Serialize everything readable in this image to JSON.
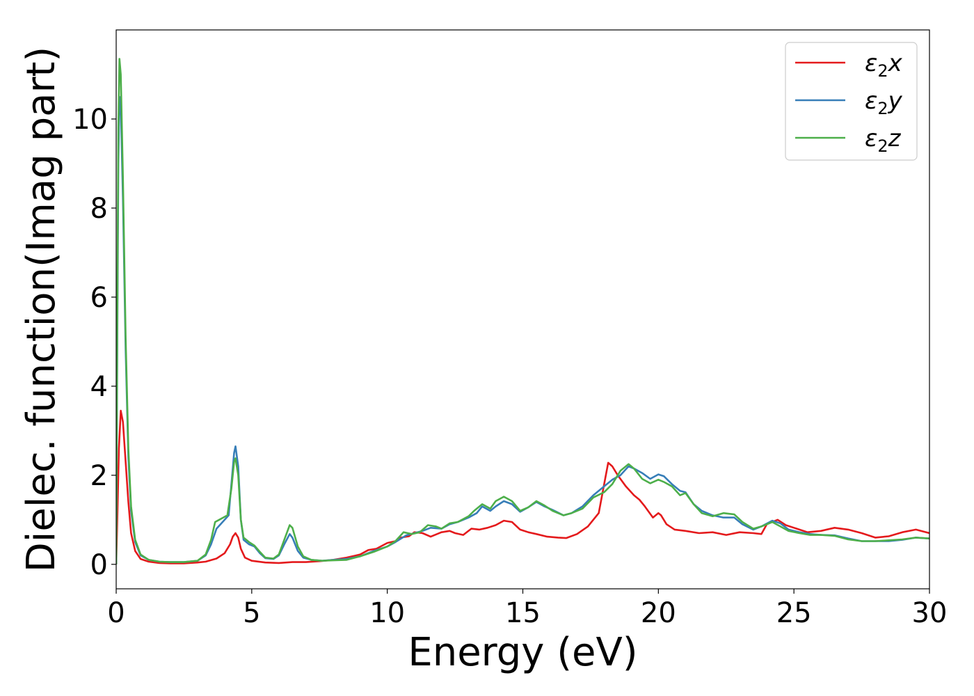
{
  "chart_data": {
    "type": "line",
    "title": "",
    "xlabel": "Energy (eV)",
    "ylabel": "Dielec. function(Imag part)",
    "xlim": [
      0,
      30
    ],
    "ylim": [
      -0.55,
      12.0
    ],
    "xticks": [
      0,
      5,
      10,
      15,
      20,
      25,
      30
    ],
    "yticks": [
      0,
      2,
      4,
      6,
      8,
      10
    ],
    "grid": false,
    "legend_position": "top-right",
    "series": [
      {
        "name": "ε₂x",
        "legend_base": "ε",
        "legend_sub": "2",
        "legend_suffix": "x",
        "color": "#e41a1c",
        "points": [
          [
            0,
            0
          ],
          [
            0.05,
            1.2
          ],
          [
            0.1,
            2.6
          ],
          [
            0.17,
            3.45
          ],
          [
            0.25,
            3.2
          ],
          [
            0.35,
            2.3
          ],
          [
            0.45,
            1.4
          ],
          [
            0.55,
            0.7
          ],
          [
            0.7,
            0.3
          ],
          [
            0.9,
            0.12
          ],
          [
            1.2,
            0.06
          ],
          [
            1.6,
            0.03
          ],
          [
            2.0,
            0.02
          ],
          [
            2.5,
            0.02
          ],
          [
            3.0,
            0.04
          ],
          [
            3.3,
            0.06
          ],
          [
            3.7,
            0.13
          ],
          [
            4.0,
            0.25
          ],
          [
            4.2,
            0.45
          ],
          [
            4.3,
            0.62
          ],
          [
            4.4,
            0.7
          ],
          [
            4.5,
            0.6
          ],
          [
            4.6,
            0.35
          ],
          [
            4.75,
            0.15
          ],
          [
            5.0,
            0.08
          ],
          [
            5.5,
            0.04
          ],
          [
            6.0,
            0.03
          ],
          [
            6.5,
            0.05
          ],
          [
            7.0,
            0.05
          ],
          [
            7.5,
            0.07
          ],
          [
            8.0,
            0.1
          ],
          [
            8.5,
            0.15
          ],
          [
            9.0,
            0.22
          ],
          [
            9.3,
            0.32
          ],
          [
            9.6,
            0.35
          ],
          [
            10.0,
            0.48
          ],
          [
            10.3,
            0.52
          ],
          [
            10.5,
            0.6
          ],
          [
            10.8,
            0.63
          ],
          [
            11.0,
            0.72
          ],
          [
            11.3,
            0.7
          ],
          [
            11.6,
            0.62
          ],
          [
            12.0,
            0.72
          ],
          [
            12.3,
            0.75
          ],
          [
            12.5,
            0.7
          ],
          [
            12.8,
            0.66
          ],
          [
            13.1,
            0.8
          ],
          [
            13.4,
            0.78
          ],
          [
            13.7,
            0.82
          ],
          [
            14.0,
            0.88
          ],
          [
            14.3,
            0.98
          ],
          [
            14.6,
            0.95
          ],
          [
            14.9,
            0.78
          ],
          [
            15.2,
            0.72
          ],
          [
            15.5,
            0.68
          ],
          [
            15.9,
            0.62
          ],
          [
            16.3,
            0.6
          ],
          [
            16.6,
            0.59
          ],
          [
            17.0,
            0.68
          ],
          [
            17.4,
            0.85
          ],
          [
            17.8,
            1.15
          ],
          [
            18.0,
            1.8
          ],
          [
            18.15,
            2.28
          ],
          [
            18.3,
            2.2
          ],
          [
            18.5,
            2.0
          ],
          [
            18.8,
            1.75
          ],
          [
            19.1,
            1.55
          ],
          [
            19.3,
            1.45
          ],
          [
            19.5,
            1.3
          ],
          [
            19.8,
            1.05
          ],
          [
            20.0,
            1.15
          ],
          [
            20.1,
            1.1
          ],
          [
            20.3,
            0.9
          ],
          [
            20.6,
            0.78
          ],
          [
            21.0,
            0.75
          ],
          [
            21.5,
            0.7
          ],
          [
            22.0,
            0.72
          ],
          [
            22.5,
            0.66
          ],
          [
            23.0,
            0.72
          ],
          [
            23.5,
            0.7
          ],
          [
            23.8,
            0.68
          ],
          [
            24.0,
            0.9
          ],
          [
            24.4,
            1.0
          ],
          [
            24.7,
            0.88
          ],
          [
            25.0,
            0.82
          ],
          [
            25.5,
            0.72
          ],
          [
            26.0,
            0.75
          ],
          [
            26.5,
            0.82
          ],
          [
            27.0,
            0.78
          ],
          [
            27.5,
            0.7
          ],
          [
            28.0,
            0.6
          ],
          [
            28.5,
            0.63
          ],
          [
            29.0,
            0.72
          ],
          [
            29.5,
            0.78
          ],
          [
            30.0,
            0.7
          ]
        ]
      },
      {
        "name": "ε₂y",
        "legend_base": "ε",
        "legend_sub": "2",
        "legend_suffix": "y",
        "color": "#377eb8",
        "points": [
          [
            0,
            0
          ],
          [
            0.04,
            5.0
          ],
          [
            0.08,
            9.0
          ],
          [
            0.12,
            10.5
          ],
          [
            0.17,
            10.3
          ],
          [
            0.25,
            8.2
          ],
          [
            0.35,
            4.8
          ],
          [
            0.45,
            2.4
          ],
          [
            0.55,
            1.2
          ],
          [
            0.7,
            0.5
          ],
          [
            0.9,
            0.2
          ],
          [
            1.2,
            0.1
          ],
          [
            1.6,
            0.06
          ],
          [
            2.0,
            0.05
          ],
          [
            2.5,
            0.05
          ],
          [
            3.0,
            0.08
          ],
          [
            3.3,
            0.2
          ],
          [
            3.5,
            0.45
          ],
          [
            3.7,
            0.8
          ],
          [
            3.85,
            0.9
          ],
          [
            4.0,
            1.0
          ],
          [
            4.15,
            1.1
          ],
          [
            4.25,
            1.8
          ],
          [
            4.35,
            2.5
          ],
          [
            4.4,
            2.65
          ],
          [
            4.5,
            2.2
          ],
          [
            4.6,
            1.0
          ],
          [
            4.7,
            0.55
          ],
          [
            4.9,
            0.45
          ],
          [
            5.1,
            0.4
          ],
          [
            5.3,
            0.25
          ],
          [
            5.5,
            0.14
          ],
          [
            5.8,
            0.12
          ],
          [
            6.0,
            0.2
          ],
          [
            6.2,
            0.45
          ],
          [
            6.4,
            0.68
          ],
          [
            6.5,
            0.6
          ],
          [
            6.7,
            0.3
          ],
          [
            6.9,
            0.15
          ],
          [
            7.2,
            0.1
          ],
          [
            7.6,
            0.08
          ],
          [
            8.0,
            0.1
          ],
          [
            8.5,
            0.12
          ],
          [
            9.0,
            0.18
          ],
          [
            9.5,
            0.3
          ],
          [
            10.0,
            0.4
          ],
          [
            10.3,
            0.5
          ],
          [
            10.7,
            0.65
          ],
          [
            11.0,
            0.7
          ],
          [
            11.3,
            0.75
          ],
          [
            11.6,
            0.82
          ],
          [
            12.0,
            0.8
          ],
          [
            12.3,
            0.9
          ],
          [
            12.6,
            0.95
          ],
          [
            13.0,
            1.05
          ],
          [
            13.3,
            1.15
          ],
          [
            13.5,
            1.3
          ],
          [
            13.8,
            1.2
          ],
          [
            14.0,
            1.3
          ],
          [
            14.3,
            1.42
          ],
          [
            14.6,
            1.35
          ],
          [
            14.9,
            1.18
          ],
          [
            15.2,
            1.28
          ],
          [
            15.5,
            1.4
          ],
          [
            15.8,
            1.3
          ],
          [
            16.1,
            1.22
          ],
          [
            16.5,
            1.1
          ],
          [
            16.8,
            1.15
          ],
          [
            17.2,
            1.3
          ],
          [
            17.6,
            1.55
          ],
          [
            18.0,
            1.75
          ],
          [
            18.3,
            1.9
          ],
          [
            18.6,
            2.0
          ],
          [
            18.9,
            2.2
          ],
          [
            19.1,
            2.15
          ],
          [
            19.4,
            2.05
          ],
          [
            19.7,
            1.92
          ],
          [
            20.0,
            2.02
          ],
          [
            20.2,
            1.98
          ],
          [
            20.5,
            1.8
          ],
          [
            20.8,
            1.65
          ],
          [
            21.0,
            1.62
          ],
          [
            21.3,
            1.35
          ],
          [
            21.6,
            1.2
          ],
          [
            22.0,
            1.1
          ],
          [
            22.4,
            1.05
          ],
          [
            22.8,
            1.05
          ],
          [
            23.1,
            0.9
          ],
          [
            23.5,
            0.78
          ],
          [
            23.8,
            0.85
          ],
          [
            24.2,
            0.98
          ],
          [
            24.5,
            0.92
          ],
          [
            24.8,
            0.78
          ],
          [
            25.2,
            0.72
          ],
          [
            25.6,
            0.68
          ],
          [
            26.0,
            0.66
          ],
          [
            26.5,
            0.65
          ],
          [
            27.0,
            0.58
          ],
          [
            27.5,
            0.52
          ],
          [
            28.0,
            0.52
          ],
          [
            28.5,
            0.52
          ],
          [
            29.0,
            0.55
          ],
          [
            29.5,
            0.6
          ],
          [
            30.0,
            0.58
          ]
        ]
      },
      {
        "name": "ε₂z",
        "legend_base": "ε",
        "legend_sub": "2",
        "legend_suffix": "z",
        "color": "#4daf4a",
        "points": [
          [
            0,
            0
          ],
          [
            0.04,
            5.5
          ],
          [
            0.08,
            9.8
          ],
          [
            0.12,
            11.35
          ],
          [
            0.17,
            11.0
          ],
          [
            0.25,
            8.7
          ],
          [
            0.35,
            5.1
          ],
          [
            0.45,
            2.6
          ],
          [
            0.55,
            1.3
          ],
          [
            0.7,
            0.55
          ],
          [
            0.9,
            0.22
          ],
          [
            1.2,
            0.1
          ],
          [
            1.6,
            0.06
          ],
          [
            2.0,
            0.05
          ],
          [
            2.5,
            0.05
          ],
          [
            3.0,
            0.08
          ],
          [
            3.3,
            0.22
          ],
          [
            3.5,
            0.55
          ],
          [
            3.65,
            0.95
          ],
          [
            3.8,
            1.0
          ],
          [
            3.95,
            1.05
          ],
          [
            4.1,
            1.1
          ],
          [
            4.25,
            1.7
          ],
          [
            4.35,
            2.3
          ],
          [
            4.4,
            2.38
          ],
          [
            4.5,
            2.0
          ],
          [
            4.6,
            1.0
          ],
          [
            4.7,
            0.6
          ],
          [
            4.9,
            0.5
          ],
          [
            5.1,
            0.42
          ],
          [
            5.3,
            0.28
          ],
          [
            5.5,
            0.15
          ],
          [
            5.8,
            0.13
          ],
          [
            6.0,
            0.22
          ],
          [
            6.2,
            0.55
          ],
          [
            6.4,
            0.88
          ],
          [
            6.5,
            0.82
          ],
          [
            6.7,
            0.4
          ],
          [
            6.9,
            0.18
          ],
          [
            7.2,
            0.1
          ],
          [
            7.6,
            0.08
          ],
          [
            8.0,
            0.09
          ],
          [
            8.5,
            0.1
          ],
          [
            9.0,
            0.18
          ],
          [
            9.5,
            0.28
          ],
          [
            10.0,
            0.4
          ],
          [
            10.3,
            0.52
          ],
          [
            10.6,
            0.72
          ],
          [
            10.9,
            0.68
          ],
          [
            11.2,
            0.72
          ],
          [
            11.5,
            0.88
          ],
          [
            11.8,
            0.85
          ],
          [
            12.0,
            0.8
          ],
          [
            12.3,
            0.92
          ],
          [
            12.6,
            0.95
          ],
          [
            13.0,
            1.08
          ],
          [
            13.2,
            1.2
          ],
          [
            13.5,
            1.35
          ],
          [
            13.8,
            1.25
          ],
          [
            14.0,
            1.42
          ],
          [
            14.3,
            1.52
          ],
          [
            14.6,
            1.42
          ],
          [
            14.9,
            1.2
          ],
          [
            15.2,
            1.28
          ],
          [
            15.5,
            1.42
          ],
          [
            15.8,
            1.32
          ],
          [
            16.1,
            1.2
          ],
          [
            16.5,
            1.1
          ],
          [
            16.8,
            1.15
          ],
          [
            17.2,
            1.25
          ],
          [
            17.6,
            1.5
          ],
          [
            18.0,
            1.62
          ],
          [
            18.3,
            1.8
          ],
          [
            18.6,
            2.1
          ],
          [
            18.9,
            2.25
          ],
          [
            19.1,
            2.15
          ],
          [
            19.4,
            1.92
          ],
          [
            19.7,
            1.82
          ],
          [
            20.0,
            1.9
          ],
          [
            20.2,
            1.85
          ],
          [
            20.5,
            1.75
          ],
          [
            20.8,
            1.55
          ],
          [
            21.0,
            1.6
          ],
          [
            21.3,
            1.35
          ],
          [
            21.6,
            1.15
          ],
          [
            22.0,
            1.08
          ],
          [
            22.4,
            1.15
          ],
          [
            22.8,
            1.12
          ],
          [
            23.1,
            0.95
          ],
          [
            23.5,
            0.8
          ],
          [
            23.8,
            0.85
          ],
          [
            24.2,
            0.95
          ],
          [
            24.5,
            0.85
          ],
          [
            24.8,
            0.75
          ],
          [
            25.2,
            0.7
          ],
          [
            25.6,
            0.66
          ],
          [
            26.0,
            0.66
          ],
          [
            26.5,
            0.64
          ],
          [
            27.0,
            0.56
          ],
          [
            27.5,
            0.52
          ],
          [
            28.0,
            0.52
          ],
          [
            28.5,
            0.54
          ],
          [
            29.0,
            0.56
          ],
          [
            29.5,
            0.6
          ],
          [
            30.0,
            0.58
          ]
        ]
      }
    ]
  }
}
